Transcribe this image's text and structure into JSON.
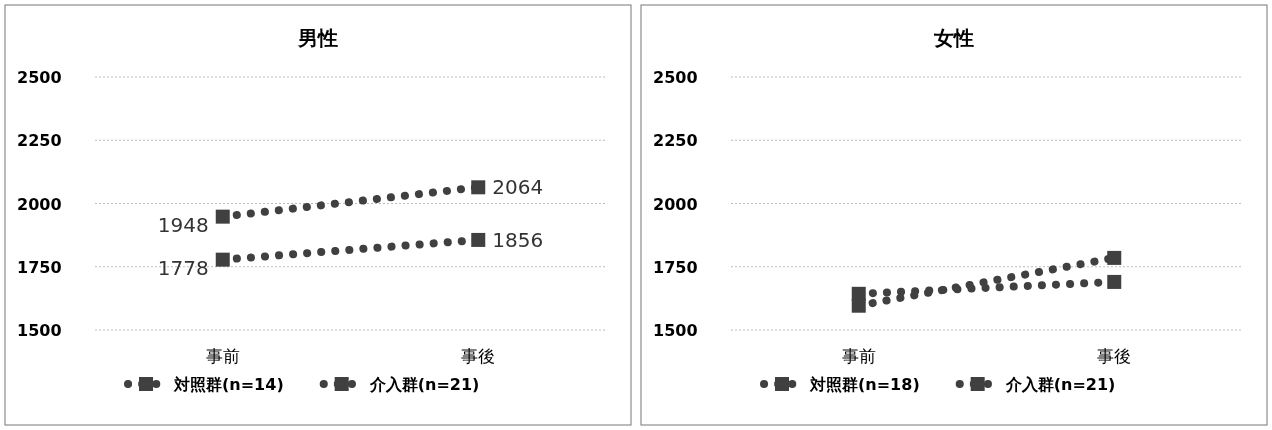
{
  "chart_data": [
    {
      "type": "line",
      "title": "男性",
      "categories": [
        "事前",
        "事後"
      ],
      "ylim": [
        1500,
        2500
      ],
      "yticks": [
        1500,
        1750,
        2000,
        2250,
        2500
      ],
      "grid": "y",
      "legend": "bottom",
      "marker": "square",
      "line_style": "dotted",
      "data_labels": true,
      "series": [
        {
          "name": "対照群(n=14)",
          "color": "#404040",
          "values": [
            1948,
            2064
          ]
        },
        {
          "name": "介入群(n=21)",
          "color": "#404040",
          "values": [
            1778,
            1856
          ]
        }
      ]
    },
    {
      "type": "line",
      "title": "女性",
      "categories": [
        "事前",
        "事後"
      ],
      "ylim": [
        1500,
        2500
      ],
      "yticks": [
        1500,
        1750,
        2000,
        2250,
        2500
      ],
      "grid": "y",
      "legend": "bottom",
      "marker": "square",
      "line_style": "dotted",
      "series": [
        {
          "name": "対照群(n=18)",
          "color": "#404040",
          "values": [
            1643,
            1690
          ]
        },
        {
          "name": "介入群(n=21)",
          "color": "#404040",
          "values": [
            1596,
            1785
          ]
        }
      ]
    }
  ]
}
